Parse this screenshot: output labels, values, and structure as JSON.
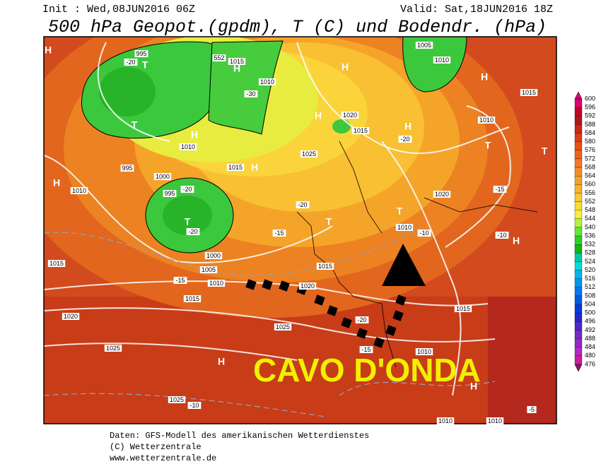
{
  "header": {
    "init": "Init : Wed,08JUN2016 06Z",
    "valid": "Valid: Sat,18JUN2016 18Z",
    "title": "500 hPa Geopot.(gpdm), T (C) und Bodendr. (hPa)"
  },
  "annotation": "CAVO D'ONDA",
  "map_labels": [
    "H",
    "995",
    "-20",
    "T",
    "552",
    "1015",
    "H",
    "-30",
    "1010",
    "H",
    "1005",
    "1010",
    "H",
    "1015",
    "T",
    "H",
    "1010",
    "1025",
    "H",
    "1020",
    "1015",
    "H",
    "-20",
    "995",
    "H",
    "1010",
    "1000",
    "995",
    "-20",
    "T",
    "-20",
    "1015",
    "H",
    "-15",
    "-20",
    "T",
    "T",
    "1010",
    "-10",
    "T",
    "T",
    "1010",
    "-15",
    "1020",
    "-10",
    "H",
    "1000",
    "1005",
    "1010",
    "-15",
    "1015",
    "1015",
    "1015",
    "1020",
    "1020",
    "1025",
    "1025",
    "H",
    "1015",
    "1010",
    "H",
    "1025",
    "-10",
    "1010",
    "1010",
    "-5",
    "-20",
    "-15"
  ],
  "colorbar": {
    "levels": [
      600,
      596,
      592,
      588,
      584,
      580,
      576,
      572,
      568,
      564,
      560,
      556,
      552,
      548,
      544,
      540,
      536,
      532,
      528,
      524,
      520,
      516,
      512,
      508,
      504,
      500,
      496,
      492,
      488,
      484,
      480,
      476
    ],
    "colors": [
      "#e0006e",
      "#c80028",
      "#b41414",
      "#c82814",
      "#dc3c14",
      "#e65014",
      "#f06414",
      "#f07828",
      "#f58c28",
      "#f5a028",
      "#f8b428",
      "#fac832",
      "#fadc32",
      "#f0f03c",
      "#b4f03c",
      "#64e632",
      "#28d228",
      "#14b414",
      "#00c8a0",
      "#00dcdc",
      "#00b4f0",
      "#0096f0",
      "#0078f0",
      "#005ae6",
      "#003cdc",
      "#2828c8",
      "#5028c8",
      "#7828c8",
      "#9628c8",
      "#b428c8",
      "#c81ea0",
      "#8c1464"
    ]
  },
  "footer": [
    "Daten: GFS-Modell des amerikanischen Wetterdienstes",
    "(C) Wetterzentrale",
    "www.wetterzentrale.de"
  ]
}
